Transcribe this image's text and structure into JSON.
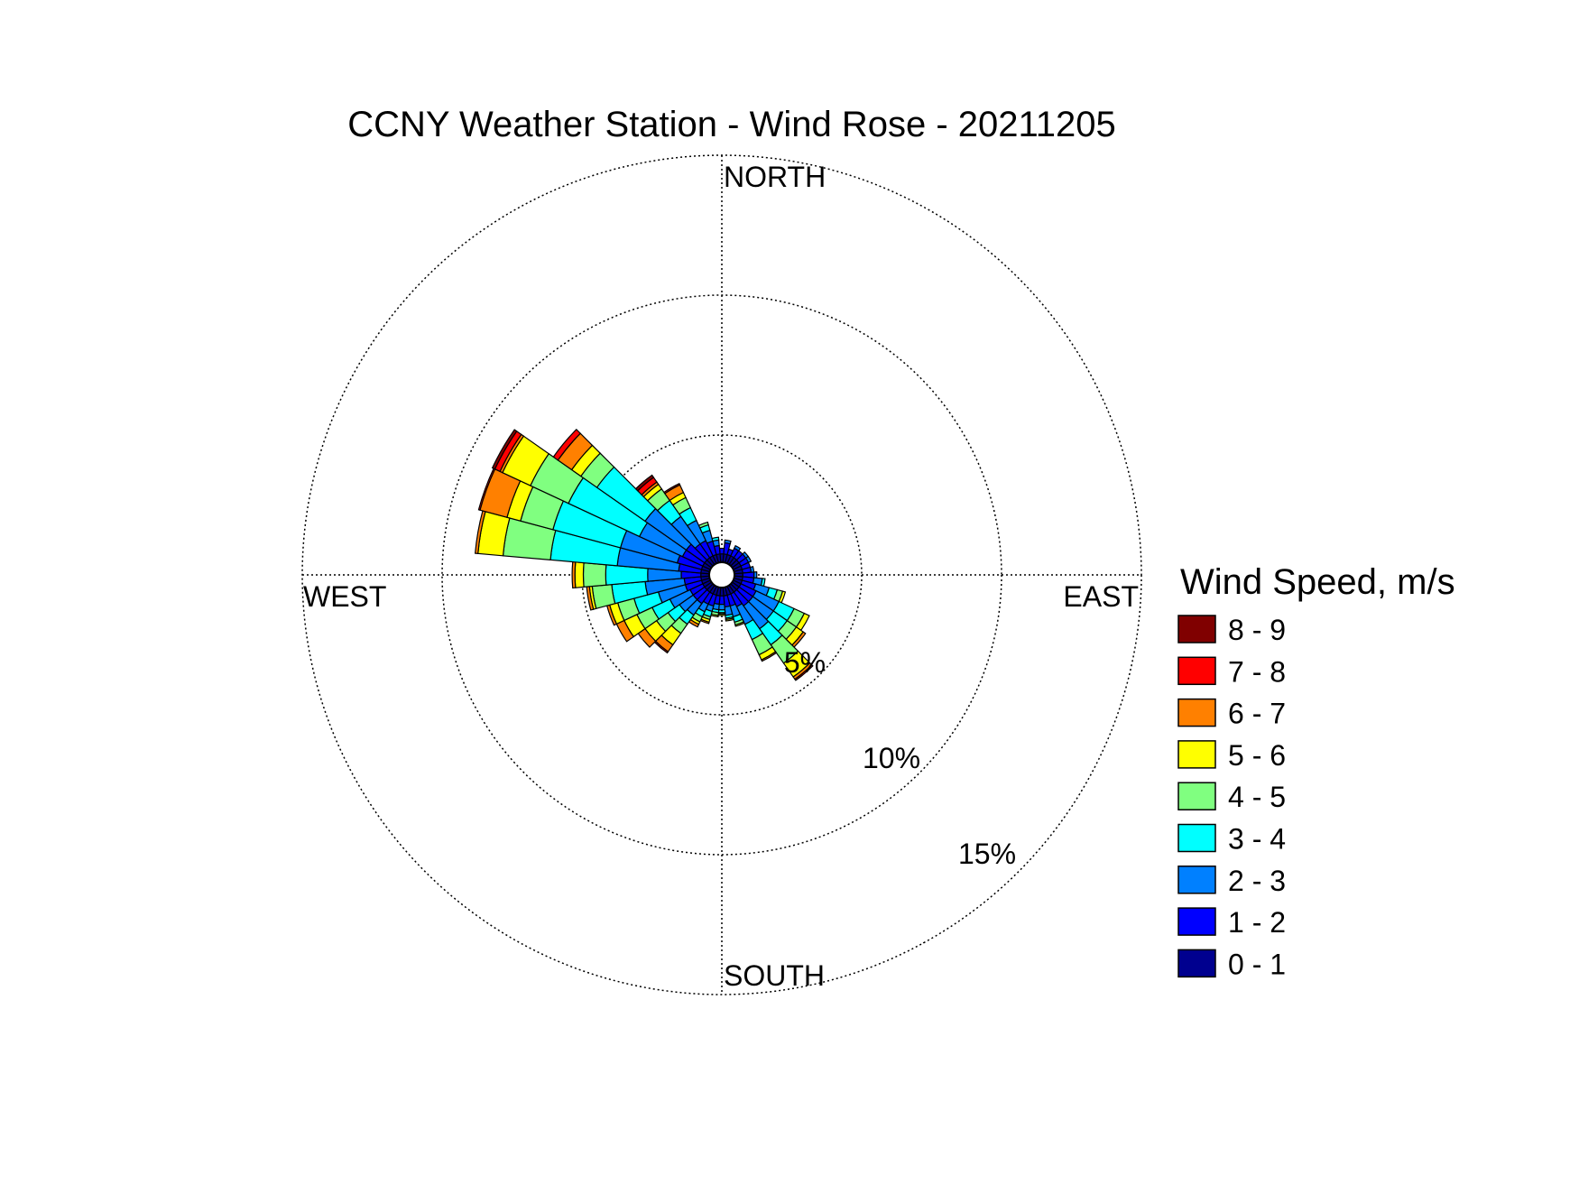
{
  "chart_data": {
    "type": "windrose",
    "title": "CCNY Weather Station - Wind Rose - 20211205",
    "directions": {
      "north": "NORTH",
      "east": "EAST",
      "south": "SOUTH",
      "west": "WEST"
    },
    "radial_labels": [
      "5%",
      "10%",
      "15%"
    ],
    "radial_values": [
      5,
      10,
      15
    ],
    "radial_max": 15,
    "sector_width_deg": 10,
    "legend": {
      "title": "Wind Speed, m/s",
      "placement": "right"
    },
    "speed_bins": [
      {
        "label": "0 - 1",
        "color": "#00008F"
      },
      {
        "label": "1 - 2",
        "color": "#0000FF"
      },
      {
        "label": "2 - 3",
        "color": "#0080FF"
      },
      {
        "label": "3 - 4",
        "color": "#00FFFF"
      },
      {
        "label": "4 - 5",
        "color": "#80FF80"
      },
      {
        "label": "5 - 6",
        "color": "#FFFF00"
      },
      {
        "label": "6 - 7",
        "color": "#FF8000"
      },
      {
        "label": "7 - 8",
        "color": "#FF0000"
      },
      {
        "label": "8 - 9",
        "color": "#800000"
      }
    ],
    "sectors": [
      {
        "dir": 0,
        "values": [
          0.3,
          0.2,
          0,
          0,
          0,
          0,
          0,
          0,
          0
        ]
      },
      {
        "dir": 10,
        "values": [
          0.3,
          0.4,
          0.1,
          0,
          0,
          0,
          0,
          0,
          0
        ]
      },
      {
        "dir": 20,
        "values": [
          0.3,
          0.2,
          0,
          0,
          0,
          0,
          0,
          0,
          0
        ]
      },
      {
        "dir": 30,
        "values": [
          0.3,
          0.3,
          0.1,
          0,
          0,
          0,
          0,
          0,
          0
        ]
      },
      {
        "dir": 40,
        "values": [
          0.3,
          0.3,
          0,
          0,
          0,
          0,
          0,
          0,
          0
        ]
      },
      {
        "dir": 50,
        "values": [
          0.3,
          0.3,
          0.1,
          0,
          0,
          0,
          0,
          0,
          0
        ]
      },
      {
        "dir": 60,
        "values": [
          0.3,
          0.3,
          0.1,
          0,
          0,
          0,
          0,
          0,
          0
        ]
      },
      {
        "dir": 70,
        "values": [
          0.3,
          0.3,
          0,
          0,
          0,
          0,
          0,
          0,
          0
        ]
      },
      {
        "dir": 80,
        "values": [
          0.3,
          0.3,
          0.1,
          0,
          0,
          0,
          0,
          0,
          0
        ]
      },
      {
        "dir": 90,
        "values": [
          0.3,
          0.4,
          0.1,
          0,
          0,
          0,
          0,
          0,
          0
        ]
      },
      {
        "dir": 100,
        "values": [
          0.3,
          0.4,
          0.3,
          0.1,
          0,
          0,
          0,
          0,
          0
        ]
      },
      {
        "dir": 110,
        "values": [
          0.3,
          0.5,
          0.5,
          0.3,
          0.2,
          0.1,
          0,
          0,
          0
        ]
      },
      {
        "dir": 120,
        "values": [
          0.3,
          0.6,
          0.9,
          0.6,
          0.4,
          0.2,
          0,
          0,
          0
        ]
      },
      {
        "dir": 130,
        "values": [
          0.3,
          0.6,
          0.9,
          0.6,
          0.4,
          0.3,
          0.1,
          0,
          0
        ]
      },
      {
        "dir": 140,
        "values": [
          0.3,
          0.6,
          1.0,
          0.7,
          0.8,
          0.6,
          0.1,
          0.05,
          0
        ]
      },
      {
        "dir": 150,
        "values": [
          0.3,
          0.5,
          0.7,
          0.6,
          0.6,
          0.2,
          0.05,
          0,
          0
        ]
      },
      {
        "dir": 160,
        "values": [
          0.3,
          0.4,
          0.4,
          0.2,
          0.1,
          0.05,
          0,
          0,
          0
        ]
      },
      {
        "dir": 170,
        "values": [
          0.3,
          0.4,
          0.3,
          0.1,
          0.05,
          0.05,
          0,
          0,
          0
        ]
      },
      {
        "dir": 180,
        "values": [
          0.3,
          0.3,
          0.2,
          0.1,
          0.05,
          0.05,
          0,
          0,
          0
        ]
      },
      {
        "dir": 190,
        "values": [
          0.3,
          0.3,
          0.2,
          0.1,
          0.1,
          0.05,
          0,
          0,
          0
        ]
      },
      {
        "dir": 200,
        "values": [
          0.3,
          0.4,
          0.2,
          0.2,
          0.1,
          0.1,
          0.05,
          0,
          0
        ]
      },
      {
        "dir": 210,
        "values": [
          0.3,
          0.4,
          0.3,
          0.2,
          0.2,
          0.1,
          0.1,
          0,
          0
        ]
      },
      {
        "dir": 220,
        "values": [
          0.3,
          0.5,
          0.5,
          0.4,
          0.4,
          0.5,
          0.3,
          0.05,
          0
        ]
      },
      {
        "dir": 230,
        "values": [
          0.3,
          0.5,
          0.6,
          0.5,
          0.5,
          0.5,
          0.3,
          0,
          0
        ]
      },
      {
        "dir": 240,
        "values": [
          0.3,
          0.5,
          0.8,
          0.7,
          0.6,
          0.5,
          0.3,
          0,
          0
        ]
      },
      {
        "dir": 250,
        "values": [
          0.3,
          0.6,
          1.0,
          0.9,
          0.6,
          0.3,
          0.1,
          0,
          0
        ]
      },
      {
        "dir": 260,
        "values": [
          0.3,
          0.6,
          1.4,
          1.2,
          0.7,
          0.1,
          0.1,
          0,
          0
        ]
      },
      {
        "dir": 270,
        "values": [
          0.3,
          0.7,
          1.2,
          1.5,
          0.8,
          0.3,
          0.1,
          0,
          0
        ]
      },
      {
        "dir": 280,
        "values": [
          0.3,
          0.8,
          2.2,
          2.4,
          1.7,
          0.9,
          0.1,
          0,
          0
        ]
      },
      {
        "dir": 290,
        "values": [
          0.3,
          0.9,
          2.1,
          2.5,
          1.2,
          0.5,
          1.0,
          0.05,
          0
        ]
      },
      {
        "dir": 300,
        "values": [
          0.3,
          0.8,
          1.7,
          2.8,
          1.5,
          1.1,
          0.1,
          0.2,
          0.1
        ]
      },
      {
        "dir": 310,
        "values": [
          0.3,
          0.8,
          1.8,
          2.1,
          0.7,
          0.4,
          0.6,
          0.2,
          0
        ]
      },
      {
        "dir": 320,
        "values": [
          0.3,
          0.6,
          1.2,
          0.7,
          0.5,
          0.2,
          0.1,
          0.2,
          0.1
        ]
      },
      {
        "dir": 330,
        "values": [
          0.3,
          0.6,
          0.8,
          0.5,
          0.4,
          0.2,
          0.3,
          0.05,
          0
        ]
      },
      {
        "dir": 340,
        "values": [
          0.3,
          0.5,
          0.4,
          0.2,
          0.1,
          0,
          0,
          0,
          0
        ]
      },
      {
        "dir": 350,
        "values": [
          0.3,
          0.3,
          0.2,
          0.1,
          0,
          0,
          0,
          0,
          0
        ]
      }
    ]
  }
}
